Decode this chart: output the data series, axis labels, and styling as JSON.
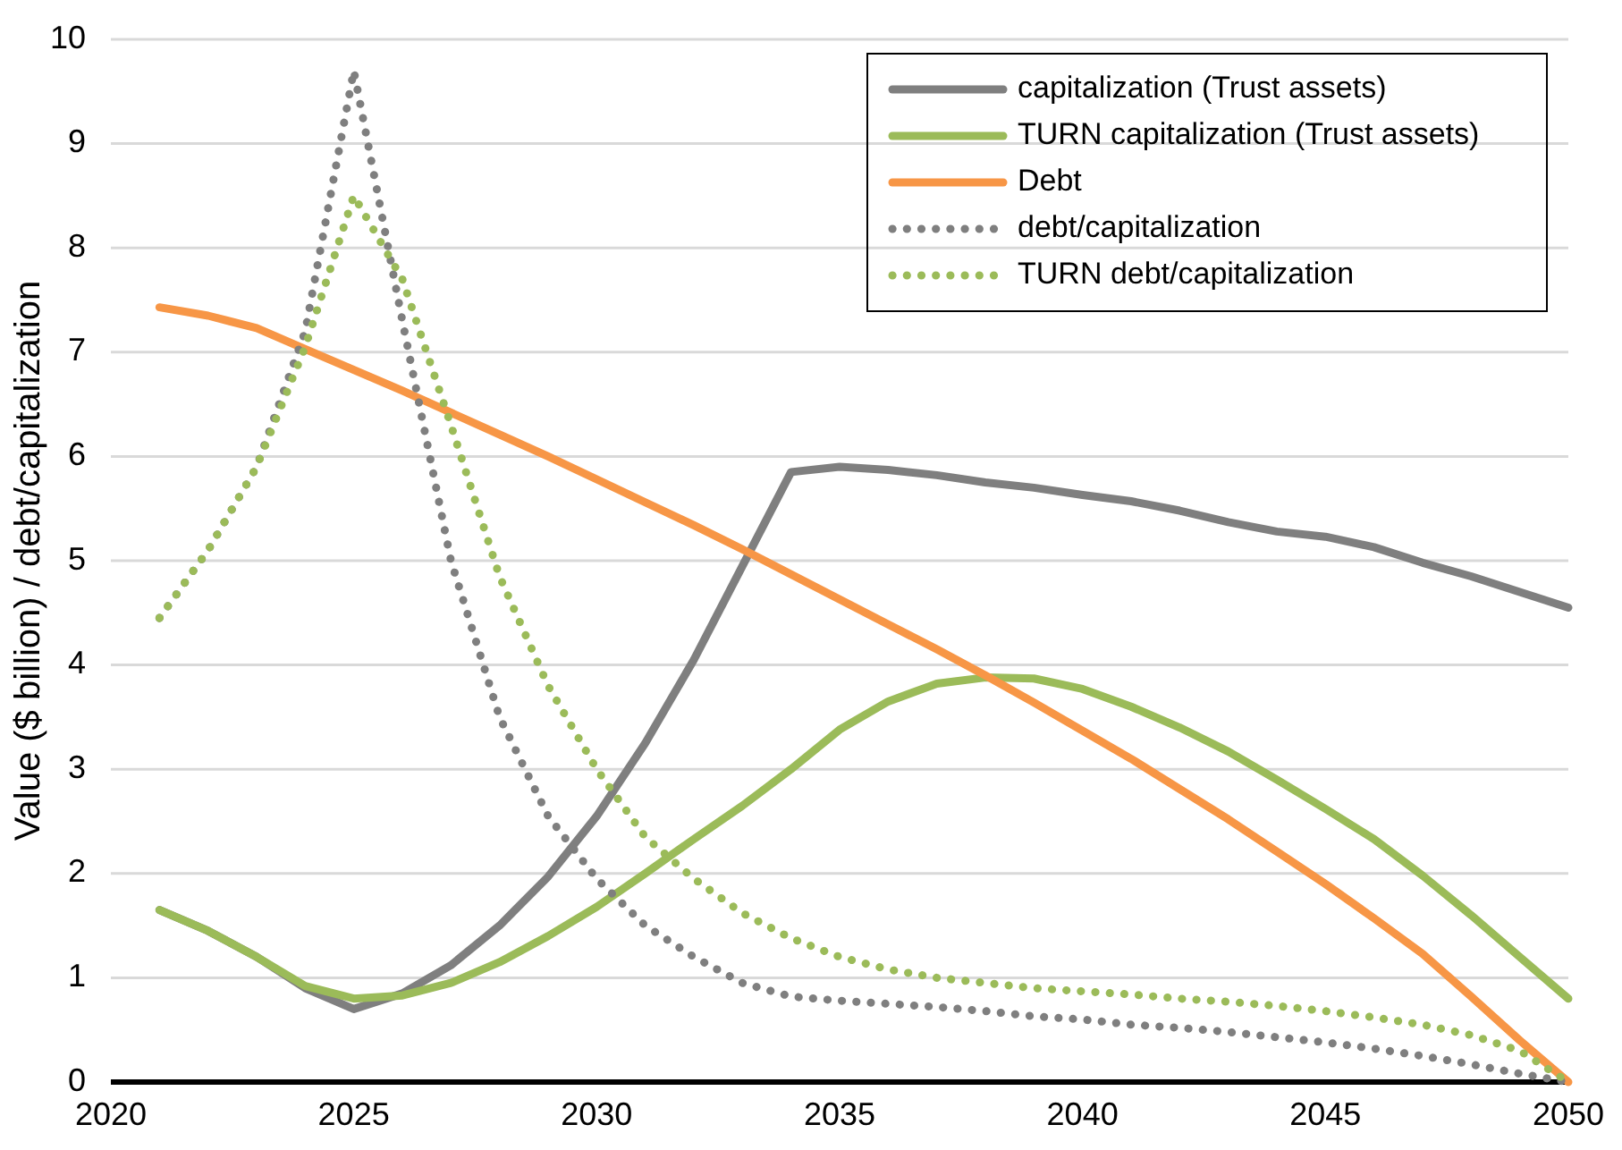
{
  "chart_data": {
    "type": "line",
    "ylabel": "Value ($ billion) / debt/capitalization",
    "x": [
      2021,
      2022,
      2023,
      2024,
      2025,
      2026,
      2027,
      2028,
      2029,
      2030,
      2031,
      2032,
      2033,
      2034,
      2035,
      2036,
      2037,
      2038,
      2039,
      2040,
      2041,
      2042,
      2043,
      2044,
      2045,
      2046,
      2047,
      2048,
      2049,
      2050
    ],
    "xlim": [
      2020,
      2050
    ],
    "xticks": [
      2020,
      2025,
      2030,
      2035,
      2040,
      2045,
      2050
    ],
    "ylim": [
      0,
      10
    ],
    "yticks": [
      0,
      1,
      2,
      3,
      4,
      5,
      6,
      7,
      8,
      9,
      10
    ],
    "grid": "y",
    "legend": "top right",
    "marker": "none",
    "series": [
      {
        "name": "capitalization (Trust assets)",
        "color": "#7f7f7f",
        "line_style": "solid",
        "values": [
          1.65,
          1.45,
          1.2,
          0.9,
          0.7,
          0.85,
          1.12,
          1.5,
          1.97,
          2.55,
          3.25,
          4.05,
          4.95,
          5.85,
          5.9,
          5.87,
          5.82,
          5.75,
          5.7,
          5.63,
          5.57,
          5.48,
          5.37,
          5.28,
          5.23,
          5.13,
          4.98,
          4.85,
          4.7,
          4.55
        ]
      },
      {
        "name": "TURN capitalization (Trust assets)",
        "color": "#9bbb59",
        "line_style": "solid",
        "values": [
          1.65,
          1.45,
          1.2,
          0.92,
          0.8,
          0.83,
          0.95,
          1.15,
          1.4,
          1.68,
          2.0,
          2.33,
          2.65,
          3.0,
          3.38,
          3.65,
          3.82,
          3.88,
          3.87,
          3.77,
          3.6,
          3.4,
          3.17,
          2.9,
          2.62,
          2.33,
          1.98,
          1.6,
          1.2,
          0.8
        ]
      },
      {
        "name": "Debt",
        "color": "#f79646",
        "line_style": "solid",
        "values": [
          7.43,
          7.35,
          7.23,
          7.03,
          6.83,
          6.63,
          6.42,
          6.21,
          6.0,
          5.78,
          5.56,
          5.34,
          5.11,
          4.87,
          4.63,
          4.39,
          4.15,
          3.9,
          3.64,
          3.37,
          3.1,
          2.81,
          2.52,
          2.21,
          1.9,
          1.57,
          1.23,
          0.82,
          0.4,
          0
        ]
      },
      {
        "name": "debt/capitalization",
        "color": "#7f7f7f",
        "line_style": "dotted",
        "values": [
          4.45,
          5.1,
          5.9,
          7.2,
          9.7,
          7.3,
          5.0,
          3.5,
          2.55,
          1.95,
          1.5,
          1.2,
          0.95,
          0.82,
          0.78,
          0.75,
          0.72,
          0.68,
          0.63,
          0.6,
          0.55,
          0.52,
          0.48,
          0.43,
          0.38,
          0.32,
          0.25,
          0.17,
          0.08,
          0
        ]
      },
      {
        "name": "TURN debt/capitalization",
        "color": "#9bbb59",
        "line_style": "dotted",
        "values": [
          4.45,
          5.1,
          5.9,
          7.05,
          8.5,
          7.7,
          6.3,
          4.85,
          3.8,
          3.0,
          2.35,
          1.95,
          1.62,
          1.38,
          1.2,
          1.08,
          1.0,
          0.95,
          0.9,
          0.87,
          0.84,
          0.8,
          0.77,
          0.73,
          0.68,
          0.62,
          0.55,
          0.45,
          0.3,
          0
        ]
      }
    ]
  }
}
